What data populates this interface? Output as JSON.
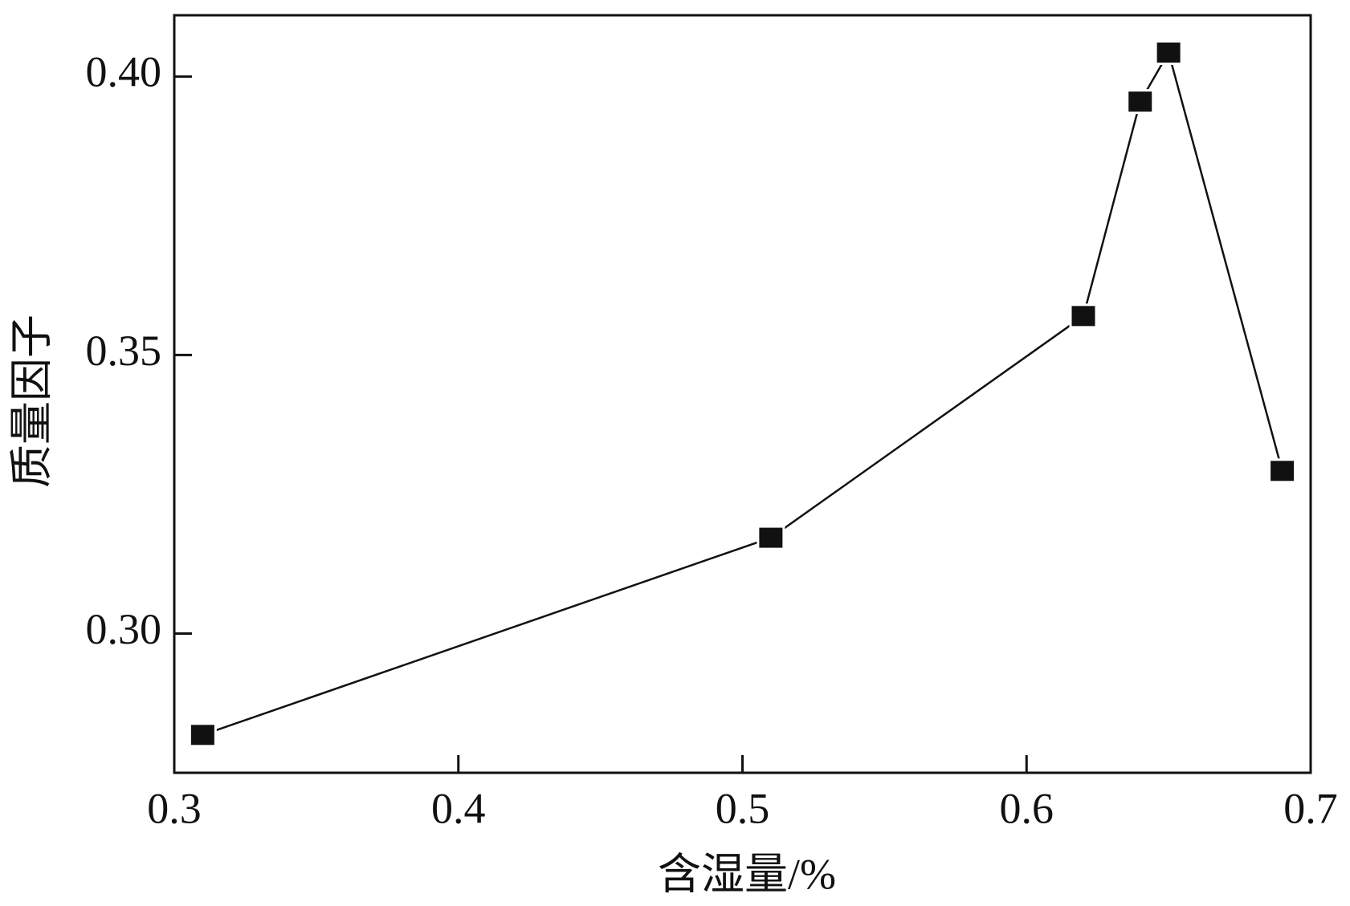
{
  "chart_data": {
    "type": "line",
    "xlabel": "含湿量/%",
    "ylabel": "质量因子",
    "x": [
      0.31,
      0.51,
      0.62,
      0.64,
      0.65,
      0.69
    ],
    "series": [
      {
        "color": "#111111",
        "values": [
          0.2818,
          0.3172,
          0.357,
          0.3955,
          0.4043,
          0.3292
        ]
      }
    ],
    "xlim": [
      0.3,
      0.7
    ],
    "xticks": [
      0.3,
      0.4,
      0.5,
      0.6,
      0.7
    ],
    "ylim": [
      0.275,
      0.411
    ],
    "yticks": [
      {
        "value": 0.3,
        "label": "0.30"
      },
      {
        "value": 0.35,
        "label": "0.35"
      },
      {
        "value": 0.4,
        "label": "0.40"
      }
    ],
    "grid": false
  }
}
